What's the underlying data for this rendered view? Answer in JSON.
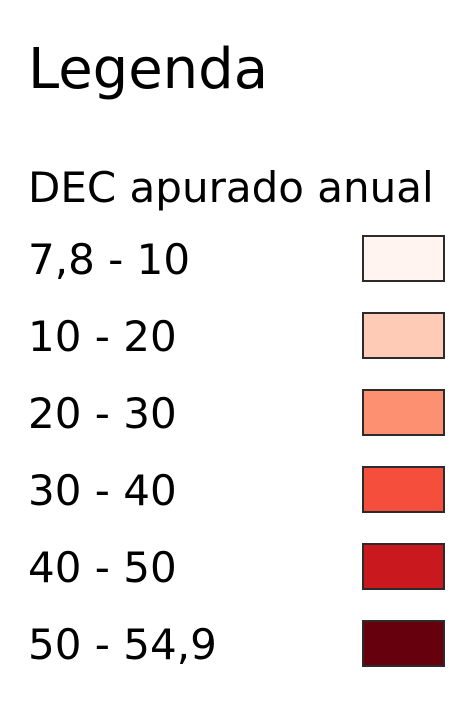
{
  "legend": {
    "title": "Legenda",
    "subtitle": "DEC apurado anual",
    "items": [
      {
        "label": "7,8 - 10",
        "color": "#fff4f0"
      },
      {
        "label": "10 - 20",
        "color": "#fdcbb6"
      },
      {
        "label": "20 - 30",
        "color": "#fc9070"
      },
      {
        "label": "30 - 40",
        "color": "#f54e3c"
      },
      {
        "label": "40 - 50",
        "color": "#c9181e"
      },
      {
        "label": "50 - 54,9",
        "color": "#67000d"
      }
    ]
  }
}
